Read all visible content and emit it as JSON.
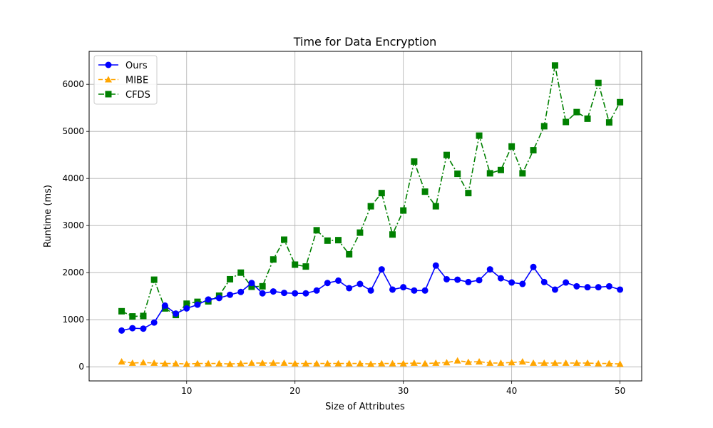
{
  "chart_data": {
    "type": "line",
    "title": "Time for Data Encryption",
    "xlabel": "Size of Attributes",
    "ylabel": "Runtime (ms)",
    "xlim": [
      1,
      52
    ],
    "ylim": [
      -300,
      6700
    ],
    "xticks": [
      10,
      20,
      30,
      40,
      50
    ],
    "yticks": [
      0,
      1000,
      2000,
      3000,
      4000,
      5000,
      6000
    ],
    "grid": true,
    "legend_position": "top-left",
    "x": [
      4,
      5,
      6,
      7,
      8,
      9,
      10,
      11,
      12,
      13,
      14,
      15,
      16,
      17,
      18,
      19,
      20,
      21,
      22,
      23,
      24,
      25,
      26,
      27,
      28,
      29,
      30,
      31,
      32,
      33,
      34,
      35,
      36,
      37,
      38,
      39,
      40,
      41,
      42,
      43,
      44,
      45,
      46,
      47,
      48,
      49,
      50
    ],
    "series": [
      {
        "name": "Ours",
        "color": "#0000ff",
        "marker": "circle",
        "linestyle": "solid",
        "values": [
          770,
          820,
          810,
          940,
          1300,
          1130,
          1240,
          1320,
          1430,
          1460,
          1530,
          1590,
          1780,
          1560,
          1600,
          1570,
          1560,
          1560,
          1620,
          1780,
          1830,
          1670,
          1760,
          1620,
          2070,
          1640,
          1690,
          1620,
          1620,
          2150,
          1860,
          1850,
          1800,
          1840,
          2070,
          1880,
          1790,
          1760,
          2120,
          1800,
          1640,
          1790,
          1710,
          1690,
          1690,
          1710,
          1640
        ]
      },
      {
        "name": "MIBE",
        "color": "#ffa500",
        "marker": "triangle",
        "linestyle": "dashed",
        "values": [
          110,
          80,
          90,
          80,
          70,
          70,
          60,
          70,
          70,
          70,
          60,
          70,
          80,
          80,
          80,
          80,
          70,
          70,
          70,
          70,
          70,
          70,
          70,
          60,
          70,
          70,
          70,
          80,
          70,
          80,
          90,
          130,
          100,
          110,
          80,
          80,
          90,
          110,
          80,
          80,
          80,
          80,
          80,
          80,
          70,
          70,
          60
        ]
      },
      {
        "name": "CFDS",
        "color": "#008000",
        "marker": "square",
        "linestyle": "dashdot",
        "values": [
          1180,
          1070,
          1080,
          1850,
          1240,
          1100,
          1340,
          1380,
          1390,
          1510,
          1860,
          2000,
          1700,
          1710,
          2280,
          2700,
          2170,
          2130,
          2900,
          2680,
          2690,
          2390,
          2850,
          3410,
          3690,
          2810,
          3320,
          4360,
          3720,
          3410,
          4500,
          4100,
          3690,
          4910,
          4110,
          4180,
          4680,
          4110,
          4600,
          5110,
          6400,
          5200,
          5410,
          5270,
          6030,
          5190,
          5620
        ]
      }
    ]
  }
}
